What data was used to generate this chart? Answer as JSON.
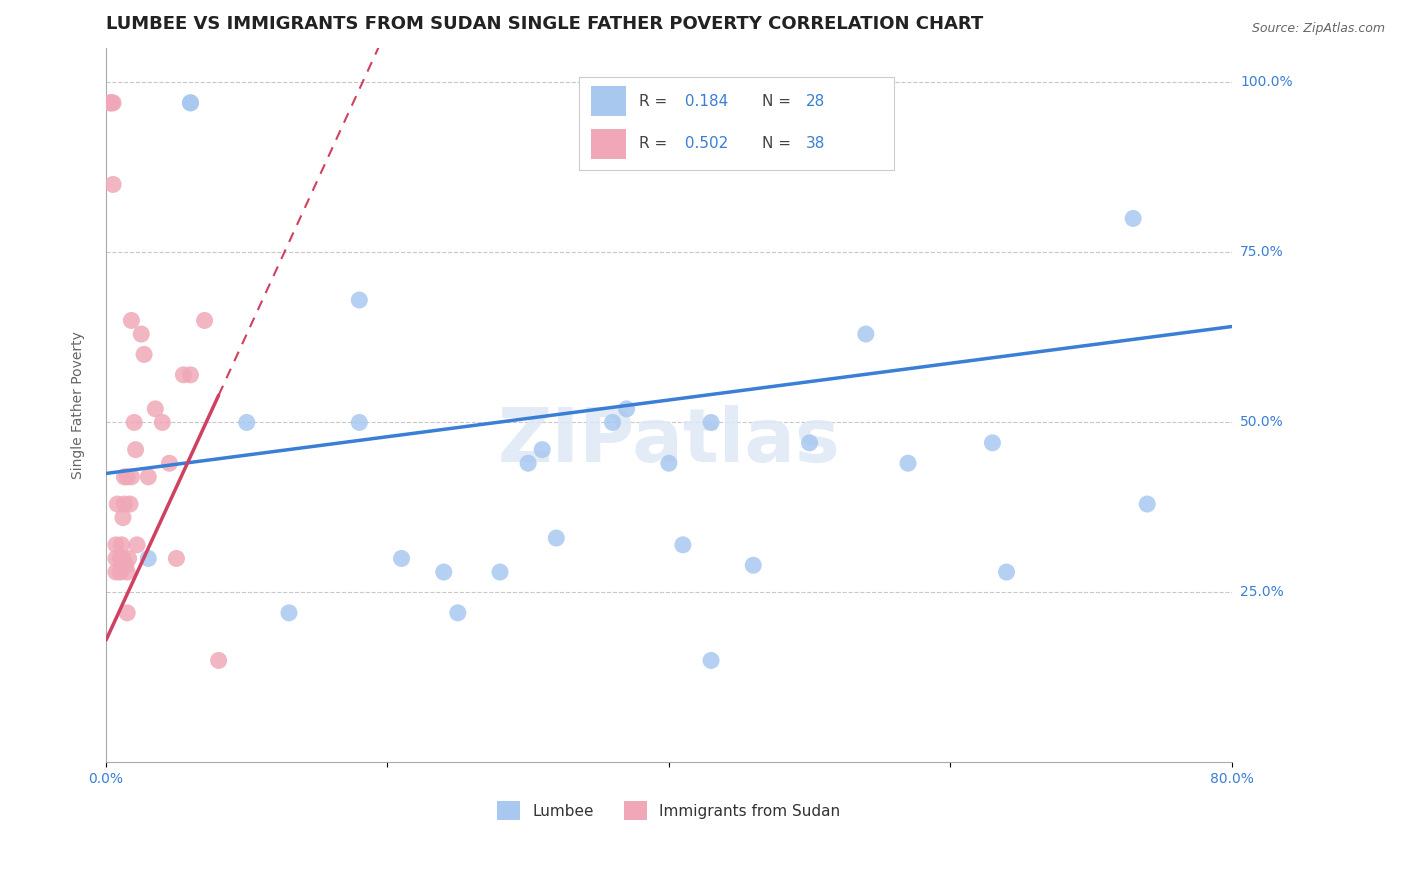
{
  "title": "LUMBEE VS IMMIGRANTS FROM SUDAN SINGLE FATHER POVERTY CORRELATION CHART",
  "source": "Source: ZipAtlas.com",
  "ylabel": "Single Father Poverty",
  "xlim": [
    0.0,
    0.8
  ],
  "ylim": [
    0.0,
    1.05
  ],
  "x_ticks": [
    0.0,
    0.2,
    0.4,
    0.6,
    0.8
  ],
  "x_tick_labels": [
    "0.0%",
    "",
    "",
    "",
    "80.0%"
  ],
  "y_ticks": [
    0.25,
    0.5,
    0.75,
    1.0
  ],
  "y_tick_labels": [
    "25.0%",
    "50.0%",
    "75.0%",
    "100.0%"
  ],
  "grid_color": "#c8c8c8",
  "background_color": "#ffffff",
  "lumbee_color": "#a8c8f0",
  "sudan_color": "#f0a8b8",
  "lumbee_line_color": "#3a7fd5",
  "sudan_line_color": "#d04060",
  "R_lumbee": 0.184,
  "N_lumbee": 28,
  "R_sudan": 0.502,
  "N_sudan": 38,
  "lumbee_x": [
    0.03,
    0.06,
    0.06,
    0.1,
    0.13,
    0.18,
    0.18,
    0.21,
    0.24,
    0.25,
    0.3,
    0.31,
    0.32,
    0.36,
    0.37,
    0.4,
    0.41,
    0.43,
    0.46,
    0.5,
    0.54,
    0.57,
    0.63,
    0.64,
    0.73,
    0.74,
    0.28,
    0.43
  ],
  "lumbee_y": [
    0.3,
    0.97,
    0.97,
    0.5,
    0.22,
    0.5,
    0.68,
    0.3,
    0.28,
    0.22,
    0.44,
    0.46,
    0.33,
    0.5,
    0.52,
    0.44,
    0.32,
    0.5,
    0.29,
    0.47,
    0.63,
    0.44,
    0.47,
    0.28,
    0.8,
    0.38,
    0.28,
    0.15
  ],
  "sudan_x": [
    0.003,
    0.003,
    0.004,
    0.005,
    0.005,
    0.007,
    0.007,
    0.007,
    0.008,
    0.01,
    0.01,
    0.011,
    0.012,
    0.012,
    0.013,
    0.013,
    0.014,
    0.015,
    0.015,
    0.016,
    0.017,
    0.018,
    0.018,
    0.02,
    0.021,
    0.022,
    0.025,
    0.027,
    0.03,
    0.035,
    0.04,
    0.045,
    0.05,
    0.055,
    0.06,
    0.07,
    0.08,
    0.015
  ],
  "sudan_y": [
    0.97,
    0.97,
    0.97,
    0.97,
    0.85,
    0.28,
    0.3,
    0.32,
    0.38,
    0.28,
    0.3,
    0.32,
    0.3,
    0.36,
    0.38,
    0.42,
    0.29,
    0.28,
    0.42,
    0.3,
    0.38,
    0.65,
    0.42,
    0.5,
    0.46,
    0.32,
    0.63,
    0.6,
    0.42,
    0.52,
    0.5,
    0.44,
    0.3,
    0.57,
    0.57,
    0.65,
    0.15,
    0.22
  ],
  "watermark": "ZIPatlas",
  "title_fontsize": 13,
  "axis_label_fontsize": 10,
  "tick_fontsize": 10,
  "legend_fontsize": 11,
  "lumbee_intercept": 0.425,
  "lumbee_slope": 0.27,
  "sudan_intercept": 0.18,
  "sudan_slope": 4.5
}
